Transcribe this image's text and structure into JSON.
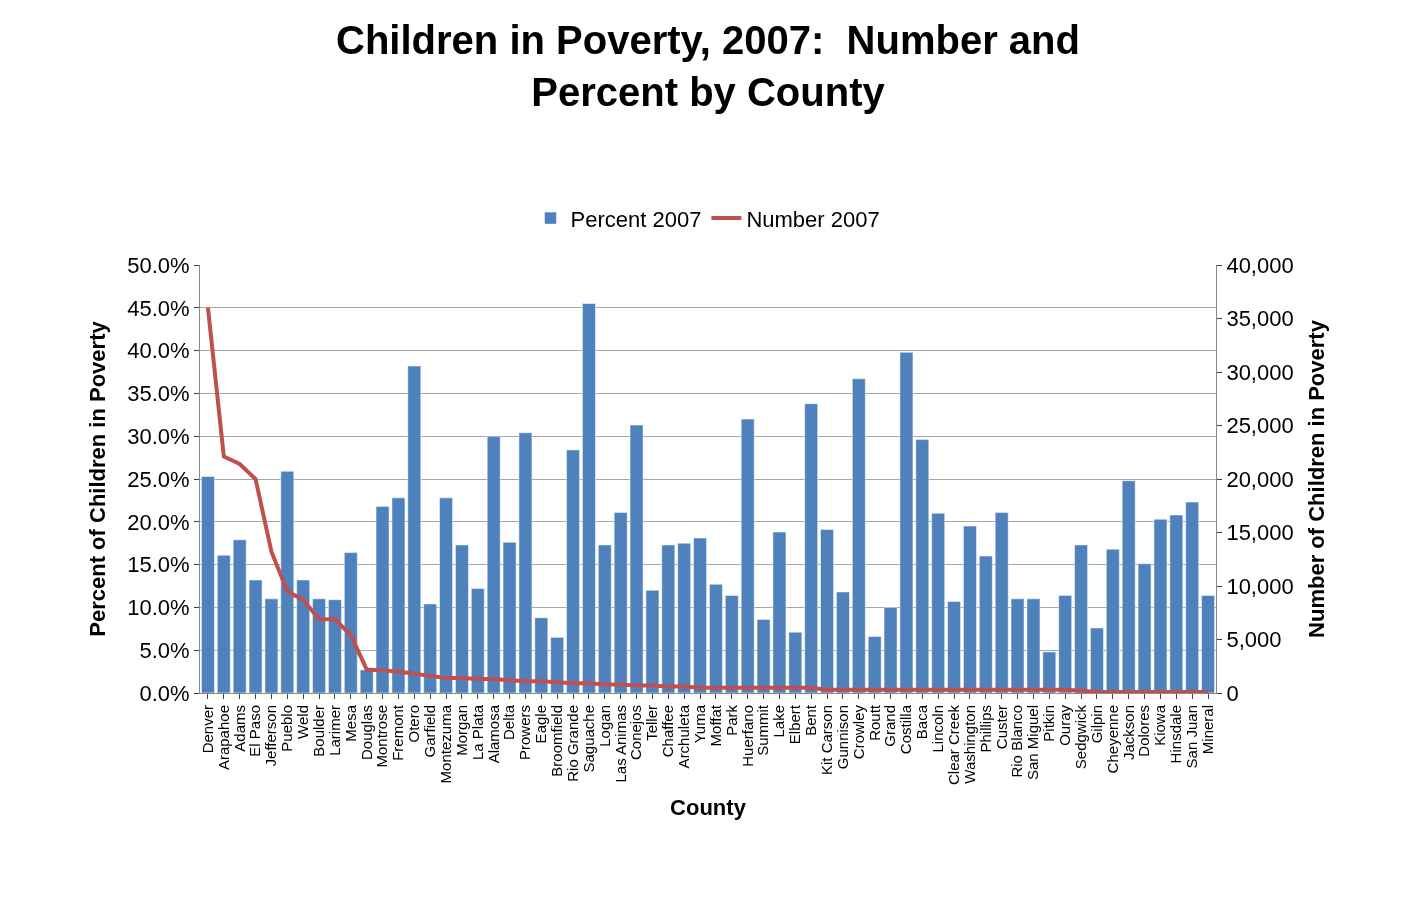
{
  "chart_data": {
    "type": "bar",
    "title": "Children in Poverty, 2007:  Number and Percent by County",
    "xlabel": "County",
    "ylabel": "Percent of Children in Poverty",
    "y2label": "Number of Children in Poverty",
    "categories": [
      "Denver",
      "Arapahoe",
      "Adams",
      "El Paso",
      "Jefferson",
      "Pueblo",
      "Weld",
      "Boulder",
      "Larimer",
      "Mesa",
      "Douglas",
      "Montrose",
      "Fremont",
      "Otero",
      "Garfield",
      "Montezuma",
      "Morgan",
      "La Plata",
      "Alamosa",
      "Delta",
      "Prowers",
      "Eagle",
      "Broomfield",
      "Rio Grande",
      "Saguache",
      "Logan",
      "Las Animas",
      "Conejos",
      "Teller",
      "Chaffee",
      "Archuleta",
      "Yuma",
      "Moffat",
      "Park",
      "Huerfano",
      "Summit",
      "Lake",
      "Elbert",
      "Bent",
      "Kit Carson",
      "Gunnison",
      "Crowley",
      "Routt",
      "Grand",
      "Costilla",
      "Baca",
      "Lincoln",
      "Clear Creek",
      "Washington",
      "Phillips",
      "Custer",
      "Rio Blanco",
      "San Miguel",
      "Pitkin",
      "Ouray",
      "Sedgwick",
      "Gilpin",
      "Cheyenne",
      "Jackson",
      "Dolores",
      "Kiowa",
      "Hinsdale",
      "San Juan",
      "Mineral"
    ],
    "series": [
      {
        "name": "Percent 2007",
        "color": "#4f81bd",
        "values": [
          25.3,
          16.1,
          17.9,
          13.2,
          11.0,
          25.9,
          13.2,
          11.0,
          10.9,
          16.4,
          2.7,
          21.8,
          22.8,
          38.2,
          10.4,
          22.8,
          17.3,
          12.2,
          30.0,
          17.6,
          30.4,
          8.8,
          6.5,
          28.4,
          45.5,
          17.3,
          21.1,
          31.3,
          12.0,
          17.3,
          17.5,
          18.1,
          12.7,
          11.4,
          32.0,
          8.6,
          18.8,
          7.1,
          33.8,
          19.1,
          11.8,
          36.7,
          6.6,
          10.0,
          39.8,
          29.6,
          21.0,
          10.7,
          19.5,
          16.0,
          21.1,
          11.0,
          11.0,
          4.8,
          11.4,
          17.3,
          7.6,
          16.8,
          24.8,
          15.1,
          20.3,
          20.8,
          22.3,
          11.4
        ]
      },
      {
        "name": "Number 2007",
        "type": "line",
        "axis": "y2",
        "color": "#c0504d",
        "values": [
          36000,
          22100,
          21400,
          20000,
          13200,
          9500,
          8700,
          6900,
          6900,
          5400,
          2200,
          2100,
          2000,
          1800,
          1600,
          1400,
          1400,
          1300,
          1300,
          1200,
          1100,
          1100,
          1000,
          900,
          900,
          800,
          800,
          700,
          700,
          600,
          600,
          500,
          500,
          500,
          500,
          500,
          500,
          500,
          500,
          300,
          300,
          300,
          300,
          300,
          300,
          300,
          300,
          300,
          300,
          300,
          300,
          300,
          300,
          300,
          300,
          200,
          100,
          100,
          100,
          100,
          100,
          100,
          100,
          100
        ]
      }
    ],
    "ylim": [
      0,
      50
    ],
    "yticks": [
      {
        "value": 0,
        "label": "0.0%"
      },
      {
        "value": 5,
        "label": "5.0%"
      },
      {
        "value": 10,
        "label": "10.0%"
      },
      {
        "value": 15,
        "label": "15.0%"
      },
      {
        "value": 20,
        "label": "20.0%"
      },
      {
        "value": 25,
        "label": "25.0%"
      },
      {
        "value": 30,
        "label": "30.0%"
      },
      {
        "value": 35,
        "label": "35.0%"
      },
      {
        "value": 40,
        "label": "40.0%"
      },
      {
        "value": 45,
        "label": "45.0%"
      },
      {
        "value": 50,
        "label": "50.0%"
      }
    ],
    "y2lim": [
      0,
      40000
    ],
    "y2ticks": [
      0,
      {
        "value": 5000,
        "label": "5,000"
      },
      {
        "value": 10000,
        "label": "10,000"
      },
      {
        "value": 15000,
        "label": "15,000"
      },
      {
        "value": 20000,
        "label": "20,000"
      },
      {
        "value": 25000,
        "label": "25,000"
      },
      {
        "value": 30000,
        "label": "30,000"
      },
      {
        "value": 35000,
        "label": "35,000"
      },
      {
        "value": 40000,
        "label": "40,000"
      }
    ],
    "grid": "y",
    "legend": "top",
    "marker": "none",
    "line_style": "solid"
  }
}
